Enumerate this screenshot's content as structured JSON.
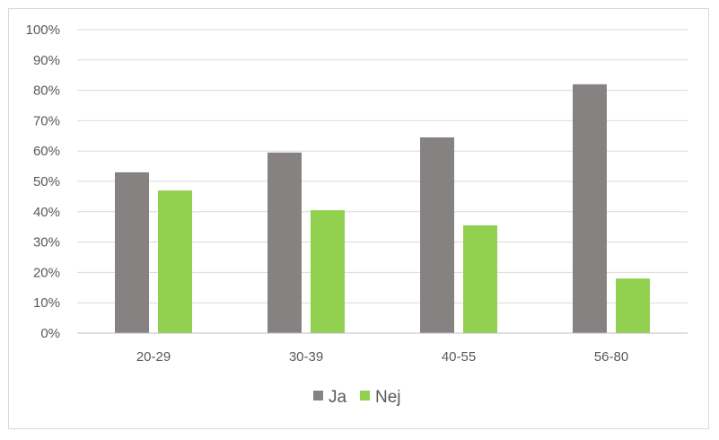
{
  "chart_data": {
    "type": "bar",
    "categories": [
      "20-29",
      "30-39",
      "40-55",
      "56-80"
    ],
    "series": [
      {
        "name": "Ja",
        "values": [
          53,
          59.5,
          64.5,
          82
        ],
        "color": "#868282"
      },
      {
        "name": "Nej",
        "values": [
          47,
          40.5,
          35.5,
          18
        ],
        "color": "#92d050"
      }
    ],
    "y_ticks": [
      "0%",
      "10%",
      "20%",
      "30%",
      "40%",
      "50%",
      "60%",
      "70%",
      "80%",
      "90%",
      "100%"
    ],
    "ylim": [
      0,
      100
    ],
    "y_unit": "%",
    "grid": true,
    "legend_position": "bottom",
    "gridline_color": "#d9d9d9",
    "axis_color": "#bfbfbf"
  }
}
